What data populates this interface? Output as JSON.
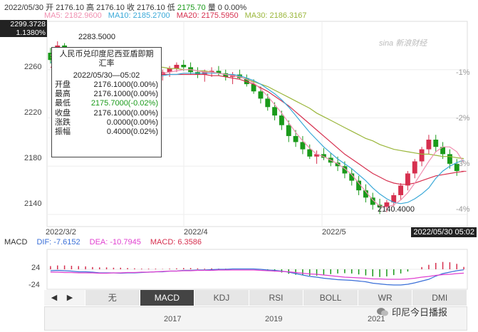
{
  "header": {
    "date": "2022/05/30",
    "open_label": "开",
    "open": "2176.10",
    "high_label": "高",
    "high": "2176.10",
    "close_label": "收",
    "close": "2176.10",
    "low_label": "低",
    "low": "2175.70",
    "volume_label": "量",
    "volume": "0",
    "change": "0.00%"
  },
  "ma": [
    {
      "label": "MA5: 2182.9600",
      "color": "#f08fb0"
    },
    {
      "label": "MA10: 2185.2700",
      "color": "#3aa9d8"
    },
    {
      "label": "MA20: 2175.5950",
      "color": "#d6304f"
    },
    {
      "label": "MA30: 2186.3167",
      "color": "#9ab63a"
    }
  ],
  "price_box": {
    "price": "2299.3728",
    "pct": "1.1380%"
  },
  "watermark": "sina 新浪财经",
  "y_axis": [
    "2260",
    "2220",
    "2180",
    "2140"
  ],
  "pct_axis": [
    "-1%",
    "-2%",
    "-3%",
    "-4%"
  ],
  "x_axis": [
    "2022/3/2",
    "2022/4",
    "2022/5"
  ],
  "date_box": "2022/05/30 05:02",
  "annotations": {
    "high": "2283.5000",
    "low": "2140.4000"
  },
  "tooltip": {
    "title_line1": "人民币兑印度尼西亚盾即期",
    "title_line2": "汇率",
    "date": "2022/05/30—05:02",
    "rows": [
      {
        "label": "开盘",
        "value": "2176.1000(0.00%)",
        "color": "#222"
      },
      {
        "label": "最高",
        "value": "2176.1000(0.00%)",
        "color": "#222"
      },
      {
        "label": "最低",
        "value": "2175.7000(-0.02%)",
        "color": "#1a9a1a"
      },
      {
        "label": "收盘",
        "value": "2176.1000(0.00%)",
        "color": "#222"
      },
      {
        "label": "涨跌",
        "value": "0.0000(0.00%)",
        "color": "#222"
      },
      {
        "label": "振幅",
        "value": "0.4000(0.02%)",
        "color": "#222"
      }
    ]
  },
  "macd": {
    "title": "MACD",
    "dif": "DIF: -7.6152",
    "dea": "DEA: -10.7945",
    "macd": "MACD: 6.3586",
    "dif_color": "#3a6fd8",
    "dea_color": "#e040d0",
    "macd_color": "#d6304f",
    "y_top": "24",
    "y_bottom": "-24"
  },
  "tabs": [
    {
      "label": "无",
      "active": false
    },
    {
      "label": "MACD",
      "active": true
    },
    {
      "label": "KDJ",
      "active": false
    },
    {
      "label": "RSI",
      "active": false
    },
    {
      "label": "BOLL",
      "active": false
    },
    {
      "label": "WR",
      "active": false
    },
    {
      "label": "DMI",
      "active": false
    }
  ],
  "nav": {
    "left": "◀",
    "right": "▶"
  },
  "mini_years": [
    "2017",
    "2019",
    "2021"
  ],
  "wechat_label": "印尼今日播报",
  "chart_data": {
    "type": "candlestick",
    "y_range": [
      2130,
      2300
    ],
    "up_color": "#d6304f",
    "down_color": "#1a9a1a",
    "candles": [
      [
        2274,
        2278,
        2265,
        2268
      ],
      [
        2268,
        2283.5,
        2262,
        2280
      ],
      [
        2280,
        2282,
        2268,
        2270
      ],
      [
        2270,
        2273,
        2262,
        2265
      ],
      [
        2265,
        2270,
        2260,
        2268
      ],
      [
        2268,
        2272,
        2262,
        2264
      ],
      [
        2264,
        2268,
        2256,
        2258
      ],
      [
        2258,
        2263,
        2252,
        2260
      ],
      [
        2260,
        2266,
        2256,
        2263
      ],
      [
        2263,
        2267,
        2257,
        2259
      ],
      [
        2259,
        2264,
        2254,
        2261
      ],
      [
        2261,
        2265,
        2256,
        2258
      ],
      [
        2258,
        2262,
        2252,
        2255
      ],
      [
        2255,
        2260,
        2249,
        2257
      ],
      [
        2257,
        2262,
        2252,
        2259
      ],
      [
        2259,
        2263,
        2254,
        2256
      ],
      [
        2256,
        2260,
        2251,
        2258
      ],
      [
        2258,
        2263,
        2254,
        2261
      ],
      [
        2261,
        2266,
        2258,
        2264
      ],
      [
        2264,
        2268,
        2259,
        2262
      ],
      [
        2262,
        2266,
        2256,
        2258
      ],
      [
        2258,
        2262,
        2253,
        2256
      ],
      [
        2256,
        2260,
        2250,
        2258
      ],
      [
        2258,
        2262,
        2254,
        2259
      ],
      [
        2259,
        2263,
        2255,
        2257
      ],
      [
        2257,
        2260,
        2251,
        2254
      ],
      [
        2254,
        2258,
        2248,
        2256
      ],
      [
        2256,
        2260,
        2252,
        2253
      ],
      [
        2253,
        2256,
        2246,
        2248
      ],
      [
        2248,
        2252,
        2240,
        2242
      ],
      [
        2242,
        2246,
        2232,
        2236
      ],
      [
        2236,
        2240,
        2226,
        2229
      ],
      [
        2229,
        2233,
        2218,
        2222
      ],
      [
        2222,
        2226,
        2210,
        2214
      ],
      [
        2214,
        2218,
        2200,
        2205
      ],
      [
        2205,
        2210,
        2196,
        2200
      ],
      [
        2200,
        2205,
        2190,
        2194
      ],
      [
        2194,
        2198,
        2186,
        2188
      ],
      [
        2188,
        2193,
        2182,
        2190
      ],
      [
        2190,
        2195,
        2185,
        2187
      ],
      [
        2187,
        2191,
        2180,
        2183
      ],
      [
        2183,
        2188,
        2176,
        2180
      ],
      [
        2180,
        2184,
        2170,
        2174
      ],
      [
        2174,
        2178,
        2164,
        2168
      ],
      [
        2168,
        2172,
        2156,
        2160
      ],
      [
        2160,
        2165,
        2150,
        2154
      ],
      [
        2154,
        2158,
        2144,
        2148
      ],
      [
        2148,
        2153,
        2140.4,
        2146
      ],
      [
        2146,
        2152,
        2142,
        2150
      ],
      [
        2150,
        2158,
        2147,
        2156
      ],
      [
        2156,
        2166,
        2152,
        2164
      ],
      [
        2164,
        2176,
        2160,
        2174
      ],
      [
        2174,
        2186,
        2170,
        2184
      ],
      [
        2184,
        2196,
        2180,
        2194
      ],
      [
        2194,
        2206,
        2190,
        2202
      ],
      [
        2202,
        2206,
        2192,
        2196
      ],
      [
        2196,
        2200,
        2186,
        2190
      ],
      [
        2190,
        2194,
        2178,
        2182
      ],
      [
        2182,
        2186,
        2172,
        2176
      ],
      [
        2176.1,
        2176.1,
        2175.7,
        2176.1
      ]
    ],
    "ma5": [
      2272,
      2274,
      2273,
      2271,
      2269,
      2267,
      2264,
      2262,
      2261,
      2260,
      2260,
      2259,
      2258,
      2257,
      2257,
      2257,
      2257,
      2258,
      2259,
      2260,
      2260,
      2259,
      2258,
      2258,
      2257,
      2256,
      2255,
      2254,
      2252,
      2249,
      2244,
      2238,
      2231,
      2224,
      2216,
      2208,
      2201,
      2195,
      2190,
      2188,
      2185,
      2182,
      2178,
      2173,
      2166,
      2159,
      2152,
      2147,
      2146,
      2148,
      2152,
      2158,
      2166,
      2175,
      2184,
      2192,
      2196,
      2196,
      2192,
      2183
    ],
    "ma10": [
      2266,
      2267,
      2266,
      2264,
      2262,
      2261,
      2259,
      2257,
      2256,
      2255,
      2254,
      2254,
      2254,
      2254,
      2255,
      2255,
      2255,
      2256,
      2256,
      2257,
      2257,
      2257,
      2257,
      2257,
      2257,
      2256,
      2256,
      2255,
      2253,
      2251,
      2248,
      2244,
      2240,
      2235,
      2229,
      2222,
      2215,
      2208,
      2202,
      2196,
      2191,
      2186,
      2182,
      2178,
      2173,
      2168,
      2162,
      2157,
      2153,
      2150,
      2149,
      2150,
      2153,
      2157,
      2162,
      2170,
      2176,
      2180,
      2183,
      2185
    ],
    "ma20": [
      2262,
      2262,
      2261,
      2260,
      2259,
      2258,
      2257,
      2256,
      2255,
      2255,
      2255,
      2255,
      2255,
      2255,
      2255,
      2255,
      2256,
      2256,
      2256,
      2256,
      2256,
      2256,
      2256,
      2255,
      2255,
      2254,
      2253,
      2252,
      2250,
      2248,
      2245,
      2242,
      2238,
      2234,
      2230,
      2225,
      2220,
      2215,
      2210,
      2205,
      2200,
      2195,
      2190,
      2186,
      2182,
      2178,
      2174,
      2171,
      2168,
      2166,
      2165,
      2165,
      2166,
      2168,
      2170,
      2172,
      2173,
      2174,
      2175,
      2175.6
    ],
    "ma30": [
      2270,
      2270,
      2270,
      2269,
      2269,
      2268,
      2267,
      2267,
      2266,
      2265,
      2265,
      2264,
      2264,
      2263,
      2263,
      2262,
      2262,
      2261,
      2261,
      2260,
      2260,
      2259,
      2259,
      2258,
      2257,
      2256,
      2255,
      2254,
      2252,
      2250,
      2248,
      2246,
      2243,
      2240,
      2237,
      2234,
      2231,
      2228,
      2224,
      2221,
      2218,
      2215,
      2212,
      2209,
      2206,
      2203,
      2201,
      2198,
      2196,
      2194,
      2193,
      2192,
      2191,
      2190,
      2190,
      2189,
      2188,
      2188,
      2187,
      2186.3
    ]
  }
}
